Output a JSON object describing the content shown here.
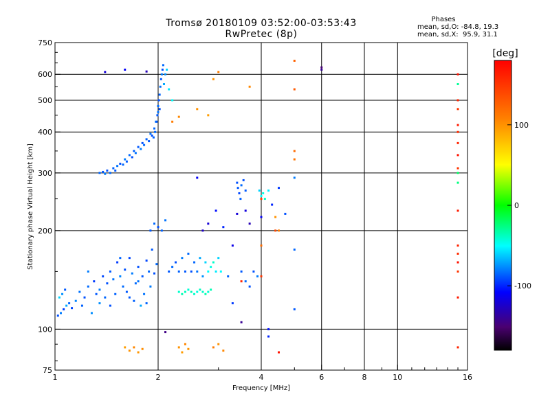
{
  "header": {
    "title_line1": "Tromsø 20180109 03:52:00-03:53:43",
    "title_line2": "RwPretec (8p)"
  },
  "phases": {
    "heading": "Phases",
    "o_stat": "mean, sd,O: -84.8, 19.3",
    "x_stat": "mean, sd,X:  95.9, 31.1"
  },
  "colorbar": {
    "unit_label": "[deg]",
    "range": [
      -180,
      180
    ],
    "tick_labels": [
      "100",
      "0",
      "-100"
    ],
    "tick_values": [
      100,
      0,
      -100
    ]
  },
  "chart_data": {
    "type": "scatter",
    "xlabel": "Frequency [MHz]",
    "ylabel": "Stationary phase Virtual Height [km]",
    "xscale": "log",
    "yscale": "log",
    "xlim": [
      1,
      16
    ],
    "ylim": [
      75,
      750
    ],
    "x_ticks": [
      1,
      2,
      4,
      6,
      8,
      10,
      16
    ],
    "x_tick_labels": [
      "1",
      "2",
      "4",
      "6",
      "8",
      "10",
      "16"
    ],
    "y_ticks": [
      75,
      100,
      200,
      300,
      400,
      500,
      600,
      750
    ],
    "y_tick_labels": [
      "75",
      "100",
      "200",
      "300",
      "400",
      "500",
      "600",
      "750"
    ],
    "grid_x": [
      2,
      4,
      6,
      8,
      10
    ],
    "grid_y": [
      100,
      200,
      300,
      400,
      500,
      600
    ],
    "grid": true,
    "color_encoding": "phase [deg]",
    "series": [
      {
        "points": [
          [
            1.02,
            110,
            -90
          ],
          [
            1.04,
            112,
            -80
          ],
          [
            1.06,
            115,
            -95
          ],
          [
            1.08,
            118,
            -70
          ],
          [
            1.1,
            120,
            -85
          ],
          [
            1.03,
            125,
            -60
          ],
          [
            1.05,
            128,
            -75
          ],
          [
            1.07,
            132,
            -88
          ],
          [
            1.12,
            116,
            -92
          ],
          [
            1.15,
            122,
            -78
          ],
          [
            1.18,
            130,
            -82
          ],
          [
            1.2,
            118,
            -86
          ],
          [
            1.22,
            125,
            -90
          ],
          [
            1.25,
            135,
            -84
          ],
          [
            1.28,
            112,
            -76
          ],
          [
            1.3,
            140,
            -95
          ],
          [
            1.32,
            128,
            -88
          ],
          [
            1.35,
            132,
            -80
          ],
          [
            1.38,
            145,
            -92
          ],
          [
            1.4,
            125,
            -85
          ],
          [
            1.42,
            138,
            -90
          ],
          [
            1.45,
            150,
            -88
          ],
          [
            1.48,
            142,
            -82
          ],
          [
            1.5,
            128,
            -86
          ],
          [
            1.52,
            160,
            -95
          ],
          [
            1.55,
            145,
            -78
          ],
          [
            1.58,
            135,
            -84
          ],
          [
            1.6,
            152,
            -90
          ],
          [
            1.62,
            130,
            -88
          ],
          [
            1.65,
            165,
            -92
          ],
          [
            1.68,
            148,
            -80
          ],
          [
            1.7,
            122,
            -86
          ],
          [
            1.72,
            138,
            -84
          ],
          [
            1.75,
            155,
            -90
          ],
          [
            1.78,
            118,
            -70
          ],
          [
            1.8,
            145,
            -88
          ],
          [
            1.82,
            128,
            -82
          ],
          [
            1.85,
            162,
            -92
          ],
          [
            1.88,
            150,
            -85
          ],
          [
            1.9,
            135,
            -80
          ],
          [
            1.92,
            175,
            -88
          ],
          [
            1.95,
            148,
            -90
          ],
          [
            1.98,
            158,
            -84
          ],
          [
            1.35,
            120,
            -76
          ],
          [
            1.25,
            150,
            -80
          ],
          [
            1.45,
            118,
            -90
          ],
          [
            1.55,
            165,
            -85
          ],
          [
            1.65,
            125,
            -88
          ],
          [
            1.75,
            140,
            -82
          ],
          [
            1.85,
            120,
            -86
          ]
        ]
      },
      {
        "points": [
          [
            1.35,
            300,
            -85
          ],
          [
            1.38,
            302,
            -88
          ],
          [
            1.4,
            298,
            -80
          ],
          [
            1.42,
            305,
            -90
          ],
          [
            1.45,
            300,
            -84
          ],
          [
            1.48,
            310,
            -86
          ],
          [
            1.5,
            305,
            -88
          ],
          [
            1.52,
            315,
            -82
          ],
          [
            1.55,
            320,
            -90
          ],
          [
            1.58,
            318,
            -85
          ],
          [
            1.6,
            330,
            -80
          ],
          [
            1.62,
            325,
            -88
          ],
          [
            1.65,
            340,
            -84
          ],
          [
            1.68,
            335,
            -90
          ],
          [
            1.7,
            350,
            -86
          ],
          [
            1.72,
            345,
            -82
          ],
          [
            1.75,
            360,
            -88
          ],
          [
            1.78,
            355,
            -80
          ],
          [
            1.8,
            370,
            -90
          ],
          [
            1.82,
            365,
            -84
          ],
          [
            1.85,
            380,
            -86
          ],
          [
            1.88,
            375,
            -88
          ],
          [
            1.9,
            395,
            -82
          ],
          [
            1.92,
            390,
            -90
          ],
          [
            1.95,
            410,
            -85
          ],
          [
            1.97,
            430,
            -80
          ],
          [
            1.99,
            450,
            -88
          ],
          [
            2.0,
            480,
            -84
          ],
          [
            2.01,
            500,
            -90
          ],
          [
            2.02,
            520,
            -86
          ],
          [
            2.03,
            550,
            -82
          ],
          [
            2.04,
            580,
            -88
          ],
          [
            2.05,
            600,
            -80
          ],
          [
            2.06,
            620,
            -90
          ],
          [
            2.07,
            640,
            -84
          ],
          [
            2.08,
            560,
            -70
          ],
          [
            2.1,
            600,
            -75
          ],
          [
            2.12,
            620,
            -60
          ],
          [
            2.15,
            540,
            -55
          ],
          [
            2.2,
            500,
            -50
          ],
          [
            1.98,
            430,
            -88
          ],
          [
            1.96,
            400,
            -84
          ],
          [
            1.94,
            385,
            -86
          ],
          [
            2.0,
            460,
            -82
          ],
          [
            2.02,
            470,
            -90
          ]
        ]
      },
      {
        "points": [
          [
            1.9,
            200,
            -88
          ],
          [
            1.95,
            210,
            -84
          ],
          [
            2.0,
            205,
            -90
          ],
          [
            2.05,
            200,
            -86
          ],
          [
            2.1,
            215,
            -82
          ],
          [
            2.15,
            150,
            -88
          ],
          [
            2.2,
            155,
            -84
          ],
          [
            2.25,
            160,
            -90
          ],
          [
            2.3,
            150,
            -86
          ],
          [
            2.35,
            165,
            -80
          ],
          [
            2.4,
            150,
            -88
          ],
          [
            2.45,
            170,
            -84
          ],
          [
            2.5,
            150,
            -90
          ],
          [
            2.55,
            160,
            -85
          ],
          [
            2.6,
            150,
            -82
          ],
          [
            2.65,
            165,
            -70
          ],
          [
            2.7,
            145,
            -75
          ],
          [
            2.75,
            160,
            -60
          ],
          [
            2.8,
            150,
            -50
          ],
          [
            2.85,
            155,
            -45
          ],
          [
            2.9,
            160,
            -40
          ],
          [
            2.95,
            150,
            -55
          ],
          [
            3.0,
            165,
            -60
          ],
          [
            3.05,
            150,
            -50
          ],
          [
            2.3,
            130,
            -40
          ],
          [
            2.35,
            128,
            -35
          ],
          [
            2.4,
            130,
            -38
          ],
          [
            2.45,
            132,
            -42
          ],
          [
            2.5,
            130,
            -36
          ],
          [
            2.55,
            128,
            -40
          ],
          [
            2.6,
            130,
            -44
          ],
          [
            2.65,
            132,
            -38
          ],
          [
            2.7,
            130,
            -40
          ],
          [
            2.75,
            128,
            -35
          ],
          [
            2.8,
            130,
            -42
          ],
          [
            2.85,
            132,
            -36
          ]
        ]
      },
      {
        "points": [
          [
            3.4,
            280,
            -90
          ],
          [
            3.42,
            270,
            -88
          ],
          [
            3.45,
            260,
            -92
          ],
          [
            3.48,
            250,
            -86
          ],
          [
            3.5,
            275,
            -84
          ],
          [
            3.55,
            285,
            -90
          ],
          [
            3.6,
            265,
            -88
          ],
          [
            3.95,
            265,
            -60
          ],
          [
            4.0,
            255,
            -50
          ],
          [
            4.05,
            260,
            -45
          ],
          [
            4.1,
            250,
            -40
          ],
          [
            4.2,
            265,
            -55
          ],
          [
            4.3,
            240,
            -100
          ],
          [
            4.5,
            270,
            -95
          ],
          [
            4.7,
            225,
            -90
          ],
          [
            5.0,
            175,
            -85
          ],
          [
            5.0,
            115,
            -88
          ],
          [
            5.0,
            290,
            -80
          ],
          [
            3.5,
            150,
            -88
          ],
          [
            3.6,
            140,
            -84
          ],
          [
            3.7,
            135,
            -90
          ],
          [
            3.2,
            145,
            -86
          ],
          [
            3.1,
            205,
            -100
          ],
          [
            3.3,
            120,
            -95
          ],
          [
            3.8,
            150,
            -90
          ],
          [
            3.9,
            145,
            -80
          ],
          [
            15.0,
            300,
            -20
          ],
          [
            15.0,
            560,
            -30
          ],
          [
            15.0,
            280,
            -25
          ]
        ]
      },
      {
        "points": [
          [
            1.6,
            88,
            95
          ],
          [
            1.65,
            86,
            100
          ],
          [
            1.7,
            88,
            105
          ],
          [
            1.75,
            85,
            98
          ],
          [
            1.8,
            87,
            102
          ],
          [
            2.3,
            88,
            100
          ],
          [
            2.35,
            85,
            95
          ],
          [
            2.4,
            90,
            105
          ],
          [
            2.45,
            87,
            98
          ],
          [
            2.9,
            88,
            110
          ],
          [
            3.0,
            90,
            100
          ],
          [
            3.1,
            86,
            105
          ],
          [
            5.0,
            660,
            125
          ],
          [
            5.0,
            540,
            130
          ],
          [
            5.0,
            350,
            120
          ],
          [
            5.0,
            330,
            115
          ],
          [
            2.2,
            430,
            110
          ],
          [
            2.3,
            445,
            105
          ],
          [
            2.6,
            470,
            100
          ],
          [
            2.8,
            450,
            95
          ],
          [
            2.9,
            580,
            100
          ],
          [
            3.0,
            610,
            110
          ],
          [
            3.7,
            550,
            105
          ],
          [
            4.4,
            220,
            100
          ],
          [
            4.5,
            200,
            110
          ],
          [
            4.0,
            180,
            120
          ]
        ]
      },
      {
        "points": [
          [
            15.0,
            600,
            170
          ],
          [
            15.0,
            500,
            160
          ],
          [
            15.0,
            470,
            150
          ],
          [
            15.0,
            420,
            165
          ],
          [
            15.0,
            400,
            155
          ],
          [
            15.0,
            370,
            160
          ],
          [
            15.0,
            340,
            170
          ],
          [
            15.0,
            310,
            150
          ],
          [
            15.0,
            230,
            165
          ],
          [
            15.0,
            180,
            160
          ],
          [
            15.0,
            170,
            155
          ],
          [
            15.0,
            160,
            170
          ],
          [
            15.0,
            150,
            150
          ],
          [
            15.0,
            125,
            165
          ],
          [
            15.0,
            88,
            160
          ],
          [
            3.5,
            140,
            160
          ],
          [
            4.0,
            145,
            150
          ],
          [
            4.4,
            200,
            140
          ],
          [
            4.5,
            85,
            170
          ],
          [
            4.0,
            250,
            145
          ]
        ]
      },
      {
        "points": [
          [
            1.4,
            610,
            -120
          ],
          [
            1.6,
            620,
            -110
          ],
          [
            1.85,
            612,
            -130
          ],
          [
            6.0,
            630,
            -150
          ],
          [
            6.0,
            620,
            -140
          ],
          [
            2.6,
            290,
            -110
          ],
          [
            3.4,
            225,
            -120
          ],
          [
            3.7,
            210,
            -130
          ],
          [
            3.3,
            180,
            -115
          ],
          [
            4.0,
            220,
            -110
          ],
          [
            2.95,
            230,
            -105
          ],
          [
            2.8,
            210,
            -120
          ],
          [
            2.7,
            200,
            -125
          ],
          [
            3.6,
            230,
            -118
          ],
          [
            4.2,
            100,
            -105
          ],
          [
            3.5,
            105,
            -140
          ],
          [
            4.2,
            95,
            -100
          ],
          [
            2.1,
            98,
            -145
          ]
        ]
      }
    ]
  }
}
